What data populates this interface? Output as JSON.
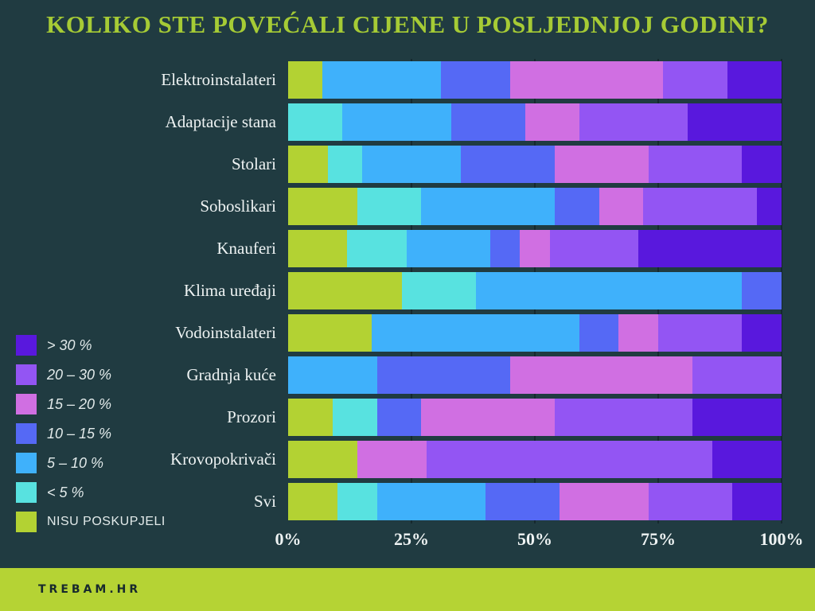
{
  "title": "KOLIKO STE POVEĆALI CIJENE U POSLJEDNJOJ GODINI?",
  "colors": {
    "background": "#203b41",
    "title": "#a6cb35",
    "gridline": "#16292e",
    "axis_text": "#eef3f3",
    "footer_bg": "#b5d334",
    "footer_text": "#17292d"
  },
  "legend": [
    {
      "label": "> 30 %",
      "color": "#5918dd"
    },
    {
      "label": "20 – 30 %",
      "color": "#9355f3"
    },
    {
      "label": "15 – 20 %",
      "color": "#d06fe2"
    },
    {
      "label": "10 – 15 %",
      "color": "#5569f5"
    },
    {
      "label": "5 – 10 %",
      "color": "#3fb1fb"
    },
    {
      "label": "< 5 %",
      "color": "#58e2e0"
    },
    {
      "label": "NISU POSKUPJELI",
      "color": "#b3d233"
    }
  ],
  "chart_data": {
    "type": "bar",
    "orientation": "horizontal",
    "stacked": true,
    "unit": "%",
    "xlim": [
      0,
      100
    ],
    "x_ticks": [
      {
        "label": "0%",
        "value": 0
      },
      {
        "label": "25%",
        "value": 25
      },
      {
        "label": "50%",
        "value": 50
      },
      {
        "label": "75%",
        "value": 75
      },
      {
        "label": "100%",
        "value": 100
      }
    ],
    "grid_values": [
      25,
      50,
      75,
      100
    ],
    "legend_position": "left-bottom",
    "categories": [
      "Elektroinstalateri",
      "Adaptacije stana",
      "Stolari",
      "Soboslikari",
      "Knauferi",
      "Klima uređaji",
      "Vodoinstalateri",
      "Gradnja kuće",
      "Prozori",
      "Krovopokrivači",
      "Svi"
    ],
    "series": [
      {
        "name": "NISU POSKUPJELI",
        "color": "#b3d233",
        "values": [
          7,
          0,
          8,
          14,
          12,
          23,
          17,
          0,
          9,
          14,
          10
        ]
      },
      {
        "name": "< 5 %",
        "color": "#58e2e0",
        "values": [
          0,
          11,
          7,
          13,
          12,
          15,
          0,
          0,
          9,
          0,
          8
        ]
      },
      {
        "name": "5 – 10 %",
        "color": "#3fb1fb",
        "values": [
          24,
          22,
          20,
          27,
          17,
          54,
          42,
          18,
          0,
          0,
          22
        ]
      },
      {
        "name": "10 – 15 %",
        "color": "#5569f5",
        "values": [
          14,
          15,
          19,
          9,
          6,
          8,
          8,
          27,
          9,
          0,
          15
        ]
      },
      {
        "name": "15 – 20 %",
        "color": "#d06fe2",
        "values": [
          31,
          11,
          19,
          9,
          6,
          0,
          8,
          37,
          27,
          14,
          18
        ]
      },
      {
        "name": "20 – 30 %",
        "color": "#9355f3",
        "values": [
          13,
          22,
          19,
          23,
          18,
          0,
          17,
          18,
          28,
          58,
          17
        ]
      },
      {
        "name": "> 30 %",
        "color": "#5918dd",
        "values": [
          11,
          19,
          8,
          5,
          29,
          0,
          8,
          0,
          18,
          14,
          10
        ]
      }
    ]
  },
  "footer": {
    "brand": "TREBAM.HR"
  }
}
